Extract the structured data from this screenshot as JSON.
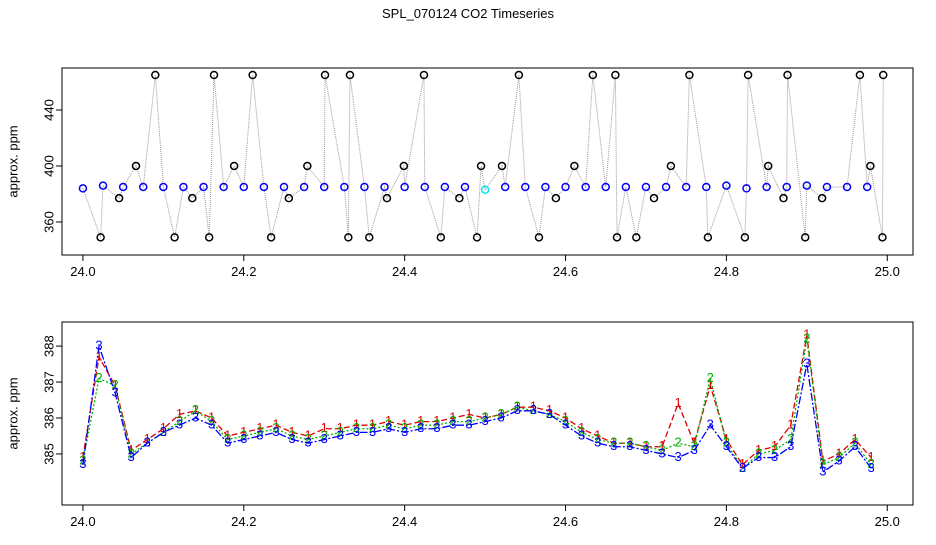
{
  "chart_data": [
    {
      "type": "scatter",
      "title": "SPL_070124  CO2 Timeseries",
      "y_label": "approx. ppm",
      "xlim": [
        23.974,
        25.032
      ],
      "ylim": [
        336.4,
        470
      ],
      "xticks": [
        {
          "value": 24,
          "label": "24.0"
        },
        24.2,
        24.4,
        24.6,
        24.8,
        {
          "value": 25,
          "label": "25.0"
        }
      ],
      "yticks": [
        360,
        400,
        440
      ],
      "line_color": "#999999",
      "series": [
        {
          "x": [
            24.0,
            24.022,
            24.025,
            24.045,
            24.05,
            24.066,
            24.075,
            24.09,
            24.1,
            24.114,
            24.125,
            24.136,
            24.15,
            24.157,
            24.163,
            24.175,
            24.188,
            24.2,
            24.211,
            24.225,
            24.234,
            24.25,
            24.256,
            24.275,
            24.279,
            24.3,
            24.301,
            24.325,
            24.33,
            24.332,
            24.35,
            24.356,
            24.375,
            24.378,
            24.399,
            24.4,
            24.424,
            24.425,
            24.445,
            24.45,
            24.468,
            24.475,
            24.49,
            24.495,
            24.5,
            24.521,
            24.525,
            24.542,
            24.55,
            24.567,
            24.575,
            24.588,
            24.6,
            24.611,
            24.625,
            24.634,
            24.65,
            24.662,
            24.664,
            24.675,
            24.688,
            24.7,
            24.71,
            24.725,
            24.731,
            24.75,
            24.754,
            24.775,
            24.777,
            24.8,
            24.823,
            24.825,
            24.827,
            24.85,
            24.852,
            24.871,
            24.875,
            24.876,
            24.898,
            24.9,
            24.919,
            24.925,
            24.95,
            24.966,
            24.975,
            24.979,
            24.994,
            24.995
          ],
          "values": [
            384,
            349,
            386,
            377,
            385,
            400,
            385,
            465,
            385,
            349,
            385,
            377,
            385,
            349,
            465,
            385,
            400,
            385,
            465,
            385,
            349,
            385,
            377,
            385,
            400,
            385,
            465,
            385,
            349,
            465,
            385,
            349,
            385,
            377,
            400,
            385,
            465,
            385,
            349,
            385,
            377,
            385,
            349,
            400,
            383,
            400,
            385,
            465,
            385,
            349,
            385,
            377,
            385,
            400,
            385,
            465,
            385,
            465,
            349,
            385,
            349,
            385,
            377,
            385,
            400,
            385,
            465,
            385,
            349,
            386,
            349,
            384,
            465,
            385,
            400,
            377,
            385,
            465,
            349,
            386,
            377,
            385,
            385,
            465,
            385,
            400,
            349,
            465
          ],
          "marker_colors": [
            "#0000ff",
            "#000000",
            "#0000ff",
            "#000000",
            "#0000ff",
            "#000000",
            "#0000ff",
            "#000000",
            "#0000ff",
            "#000000",
            "#0000ff",
            "#000000",
            "#0000ff",
            "#000000",
            "#000000",
            "#0000ff",
            "#000000",
            "#0000ff",
            "#000000",
            "#0000ff",
            "#000000",
            "#0000ff",
            "#000000",
            "#0000ff",
            "#000000",
            "#0000ff",
            "#000000",
            "#0000ff",
            "#000000",
            "#000000",
            "#0000ff",
            "#000000",
            "#0000ff",
            "#000000",
            "#000000",
            "#0000ff",
            "#000000",
            "#0000ff",
            "#000000",
            "#0000ff",
            "#000000",
            "#0000ff",
            "#000000",
            "#000000",
            "#00e5ee",
            "#000000",
            "#0000ff",
            "#000000",
            "#0000ff",
            "#000000",
            "#0000ff",
            "#000000",
            "#0000ff",
            "#000000",
            "#0000ff",
            "#000000",
            "#0000ff",
            "#000000",
            "#000000",
            "#0000ff",
            "#000000",
            "#0000ff",
            "#000000",
            "#0000ff",
            "#000000",
            "#0000ff",
            "#000000",
            "#0000ff",
            "#000000",
            "#0000ff",
            "#000000",
            "#0000ff",
            "#000000",
            "#0000ff",
            "#000000",
            "#000000",
            "#0000ff",
            "#000000",
            "#000000",
            "#0000ff",
            "#000000",
            "#0000ff",
            "#0000ff",
            "#000000",
            "#0000ff",
            "#000000",
            "#000000",
            "#000000"
          ]
        }
      ]
    },
    {
      "type": "line",
      "y_label": "approx. ppm",
      "xlim": [
        23.974,
        25.032
      ],
      "ylim": [
        383.58,
        388.67
      ],
      "xticks": [
        {
          "value": 24,
          "label": "24.0"
        },
        24.2,
        24.4,
        24.6,
        24.8,
        {
          "value": 25,
          "label": "25.0"
        }
      ],
      "yticks": [
        385,
        386,
        387,
        388
      ],
      "x": [
        24.0,
        24.02,
        24.04,
        24.06,
        24.08,
        24.1,
        24.12,
        24.14,
        24.16,
        24.18,
        24.2,
        24.22,
        24.24,
        24.26,
        24.28,
        24.3,
        24.32,
        24.34,
        24.36,
        24.38,
        24.4,
        24.42,
        24.44,
        24.46,
        24.48,
        24.5,
        24.52,
        24.54,
        24.56,
        24.58,
        24.6,
        24.62,
        24.64,
        24.66,
        24.68,
        24.7,
        24.72,
        24.74,
        24.76,
        24.78,
        24.8,
        24.82,
        24.84,
        24.86,
        24.88,
        24.9,
        24.92,
        24.94,
        24.96,
        24.98
      ],
      "series": [
        {
          "symbol": "1",
          "color": "#e00000",
          "dash": "6 3",
          "values": [
            384.9,
            387.7,
            386.9,
            385.1,
            385.4,
            385.7,
            386.1,
            386.2,
            386.0,
            385.5,
            385.6,
            385.7,
            385.8,
            385.6,
            385.5,
            385.7,
            385.7,
            385.8,
            385.8,
            385.9,
            385.8,
            385.9,
            385.9,
            386.0,
            386.1,
            386.0,
            386.1,
            386.3,
            386.3,
            386.2,
            386.0,
            385.7,
            385.5,
            385.3,
            385.3,
            385.2,
            385.2,
            386.4,
            385.3,
            386.9,
            385.4,
            384.7,
            385.1,
            385.2,
            385.8,
            388.3,
            384.8,
            385.0,
            385.4,
            384.9
          ]
        },
        {
          "symbol": "2",
          "color": "#00b000",
          "dash": "2 2",
          "values": [
            384.8,
            387.1,
            386.9,
            385.0,
            385.3,
            385.6,
            385.9,
            386.2,
            385.9,
            385.4,
            385.5,
            385.6,
            385.7,
            385.5,
            385.4,
            385.5,
            385.6,
            385.7,
            385.7,
            385.8,
            385.7,
            385.8,
            385.8,
            385.9,
            385.9,
            386.0,
            386.1,
            386.3,
            386.2,
            386.1,
            385.9,
            385.6,
            385.4,
            385.3,
            385.3,
            385.2,
            385.1,
            385.3,
            385.2,
            387.1,
            385.3,
            384.6,
            385.0,
            385.1,
            385.4,
            388.2,
            384.7,
            384.9,
            385.3,
            384.7
          ]
        },
        {
          "symbol": "3",
          "color": "#0000ff",
          "dash": "8 2 2 2",
          "values": [
            384.7,
            388.0,
            386.7,
            384.9,
            385.3,
            385.6,
            385.8,
            386.0,
            385.8,
            385.3,
            385.4,
            385.5,
            385.6,
            385.4,
            385.3,
            385.4,
            385.5,
            385.6,
            385.6,
            385.7,
            385.6,
            385.7,
            385.7,
            385.8,
            385.8,
            385.9,
            386.0,
            386.2,
            386.2,
            386.1,
            385.8,
            385.5,
            385.3,
            385.2,
            385.2,
            385.1,
            385.0,
            384.9,
            385.1,
            385.8,
            385.2,
            384.6,
            384.9,
            384.9,
            385.2,
            387.5,
            384.5,
            384.8,
            385.2,
            384.6
          ]
        }
      ]
    }
  ]
}
